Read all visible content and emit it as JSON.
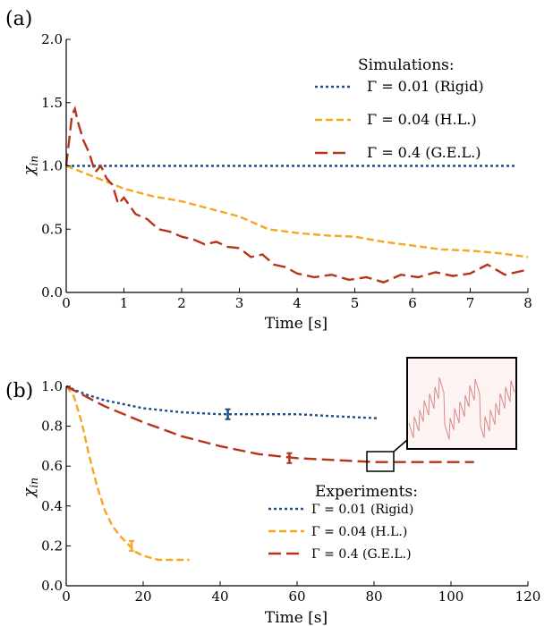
{
  "figure": {
    "panel_a_label": "(a)",
    "panel_b_label": "(b)"
  },
  "chart_data": [
    {
      "type": "line",
      "panel": "(a)",
      "xlabel": "Time [s]",
      "ylabel": "χin",
      "ylabel_main": "χ",
      "ylabel_sub": "in",
      "xlim": [
        0,
        8
      ],
      "ylim": [
        0,
        2.0
      ],
      "xticks": [
        "0",
        "1",
        "2",
        "3",
        "4",
        "5",
        "6",
        "7",
        "8"
      ],
      "yticks": [
        "0.0",
        "0.5",
        "1.0",
        "1.5",
        "2.0"
      ],
      "grid": false,
      "legend_title": "Simulations:",
      "legend_position": "top-right",
      "series": [
        {
          "name": "Γ = 0.01 (Rigid)",
          "color": "#1f4e8c",
          "style": "dotted",
          "x": [
            0,
            1,
            2,
            3,
            4,
            5,
            6,
            7,
            7.8
          ],
          "y": [
            1.0,
            1.0,
            1.0,
            1.0,
            1.0,
            1.0,
            1.0,
            1.0,
            1.0
          ]
        },
        {
          "name": "Γ = 0.04 (H.L.)",
          "color": "#f5a623",
          "style": "dashed",
          "x": [
            0,
            0.5,
            1,
            1.5,
            2,
            2.5,
            3,
            3.5,
            4,
            4.5,
            5,
            5.5,
            6,
            6.5,
            7,
            7.5,
            8
          ],
          "y": [
            1.0,
            0.91,
            0.82,
            0.76,
            0.72,
            0.66,
            0.6,
            0.5,
            0.47,
            0.45,
            0.44,
            0.4,
            0.37,
            0.34,
            0.33,
            0.31,
            0.28
          ]
        },
        {
          "name": "Γ = 0.4 (G.E.L.)",
          "color": "#b5341a",
          "style": "long-dashed",
          "x": [
            0,
            0.05,
            0.1,
            0.15,
            0.2,
            0.3,
            0.4,
            0.5,
            0.6,
            0.7,
            0.8,
            0.9,
            1.0,
            1.2,
            1.4,
            1.6,
            1.8,
            2.0,
            2.2,
            2.4,
            2.6,
            2.8,
            3.0,
            3.2,
            3.4,
            3.6,
            3.8,
            4.0,
            4.3,
            4.6,
            4.9,
            5.2,
            5.5,
            5.8,
            6.1,
            6.4,
            6.7,
            7.0,
            7.3,
            7.6,
            8.0
          ],
          "y": [
            1.0,
            1.2,
            1.4,
            1.45,
            1.35,
            1.2,
            1.1,
            0.95,
            1.0,
            0.9,
            0.85,
            0.7,
            0.75,
            0.62,
            0.58,
            0.5,
            0.48,
            0.44,
            0.42,
            0.38,
            0.4,
            0.36,
            0.35,
            0.28,
            0.3,
            0.22,
            0.2,
            0.15,
            0.12,
            0.14,
            0.1,
            0.12,
            0.08,
            0.14,
            0.12,
            0.16,
            0.13,
            0.15,
            0.22,
            0.14,
            0.18
          ]
        }
      ]
    },
    {
      "type": "line",
      "panel": "(b)",
      "xlabel": "Time [s]",
      "ylabel": "χin",
      "ylabel_main": "χ",
      "ylabel_sub": "in",
      "xlim": [
        0,
        120
      ],
      "ylim": [
        0,
        1.0
      ],
      "xticks": [
        "0",
        "20",
        "40",
        "60",
        "80",
        "100",
        "120"
      ],
      "yticks": [
        "0.0",
        "0.2",
        "0.4",
        "0.6",
        "0.8",
        "1.0"
      ],
      "grid": false,
      "legend_title": "Experiments:",
      "legend_position": "bottom-right",
      "series": [
        {
          "name": "Γ = 0.01 (Rigid)",
          "color": "#1f4e8c",
          "style": "dotted",
          "x": [
            0,
            5,
            10,
            20,
            30,
            40,
            50,
            60,
            70,
            81
          ],
          "y": [
            1.0,
            0.96,
            0.93,
            0.89,
            0.87,
            0.86,
            0.86,
            0.86,
            0.85,
            0.84
          ],
          "error_bar": {
            "x": 42,
            "y": 0.86,
            "err": 0.025
          }
        },
        {
          "name": "Γ = 0.04 (H.L.)",
          "color": "#f5a623",
          "style": "dashed",
          "x": [
            0,
            2,
            4,
            6,
            8,
            10,
            12,
            14,
            16,
            18,
            20,
            24,
            28,
            32
          ],
          "y": [
            1.0,
            0.95,
            0.82,
            0.65,
            0.5,
            0.38,
            0.3,
            0.25,
            0.21,
            0.17,
            0.15,
            0.13,
            0.13,
            0.13
          ],
          "error_bar": {
            "x": 17,
            "y": 0.2,
            "err": 0.025
          }
        },
        {
          "name": "Γ = 0.4 (G.E.L.)",
          "color": "#b5341a",
          "style": "long-dashed",
          "x": [
            0,
            5,
            10,
            20,
            30,
            40,
            50,
            60,
            70,
            80,
            90,
            100,
            106
          ],
          "y": [
            1.0,
            0.95,
            0.9,
            0.82,
            0.75,
            0.7,
            0.66,
            0.64,
            0.63,
            0.62,
            0.62,
            0.62,
            0.62
          ],
          "error_bar": {
            "x": 58,
            "y": 0.64,
            "err": 0.025
          }
        }
      ],
      "inset": {
        "color": "#d98b8b",
        "zoom_region": {
          "x": [
            78,
            85
          ],
          "y": [
            0.6,
            0.66
          ]
        }
      }
    }
  ]
}
